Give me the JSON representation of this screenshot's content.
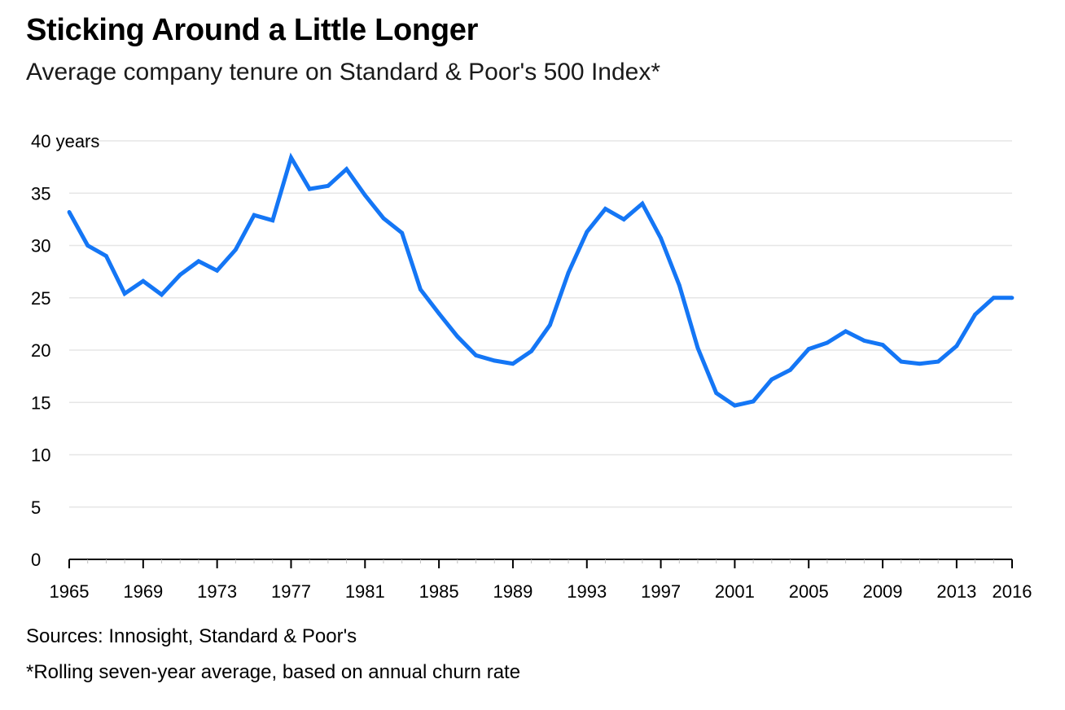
{
  "header": {
    "title": "Sticking Around a Little Longer",
    "subtitle": "Average company tenure on Standard & Poor's 500 Index*"
  },
  "footer": {
    "source": "Sources: Innosight, Standard & Poor's",
    "note": "*Rolling seven-year average, based on annual churn rate"
  },
  "colors": {
    "line": "#1476f5",
    "grid": "#e6e6e6",
    "axis": "#000000"
  },
  "chart_data": {
    "type": "line",
    "title": "Sticking Around a Little Longer",
    "subtitle": "Average company tenure on Standard & Poor's 500 Index*",
    "xlabel": "",
    "ylabel": "",
    "y_unit_label": "40 years",
    "xlim": [
      1965,
      2016
    ],
    "ylim": [
      0,
      40
    ],
    "grid": true,
    "legend": "none",
    "x_ticks": [
      1965,
      1969,
      1973,
      1977,
      1981,
      1985,
      1989,
      1993,
      1997,
      2001,
      2005,
      2009,
      2013,
      2016
    ],
    "x_tick_labels": [
      "1965",
      "1969",
      "1973",
      "1977",
      "1981",
      "1985",
      "1989",
      "1993",
      "1997",
      "2001",
      "2005",
      "2009",
      "2013",
      "2016"
    ],
    "y_ticks": [
      0,
      5,
      10,
      15,
      20,
      25,
      30,
      35,
      40
    ],
    "y_tick_labels": [
      "0",
      "5",
      "10",
      "15",
      "20",
      "25",
      "30",
      "35",
      "40 years"
    ],
    "series": [
      {
        "x": [
          1965,
          1966,
          1967,
          1968,
          1969,
          1970,
          1971,
          1972,
          1973,
          1974,
          1975,
          1976,
          1977,
          1978,
          1979,
          1980,
          1981,
          1982,
          1983,
          1984,
          1985,
          1986,
          1987,
          1988,
          1989,
          1990,
          1991,
          1992,
          1993,
          1994,
          1995,
          1996,
          1997,
          1998,
          1999,
          2000,
          2001,
          2002,
          2003,
          2004,
          2005,
          2006,
          2007,
          2008,
          2009,
          2010,
          2011,
          2012,
          2013,
          2014,
          2015,
          2016
        ],
        "values": [
          33.2,
          30.0,
          29.0,
          25.4,
          26.6,
          25.3,
          27.2,
          28.5,
          27.6,
          29.6,
          32.9,
          32.4,
          38.4,
          35.4,
          35.7,
          37.3,
          34.8,
          32.6,
          31.2,
          25.8,
          23.5,
          21.3,
          19.5,
          19.0,
          18.7,
          19.9,
          22.4,
          27.4,
          31.3,
          33.5,
          32.5,
          34.0,
          30.7,
          26.2,
          20.2,
          15.9,
          14.7,
          15.1,
          17.2,
          18.1,
          20.1,
          20.7,
          21.8,
          20.9,
          20.5,
          18.9,
          18.7,
          18.9,
          20.4,
          23.4,
          25.0,
          25.0
        ]
      }
    ]
  }
}
